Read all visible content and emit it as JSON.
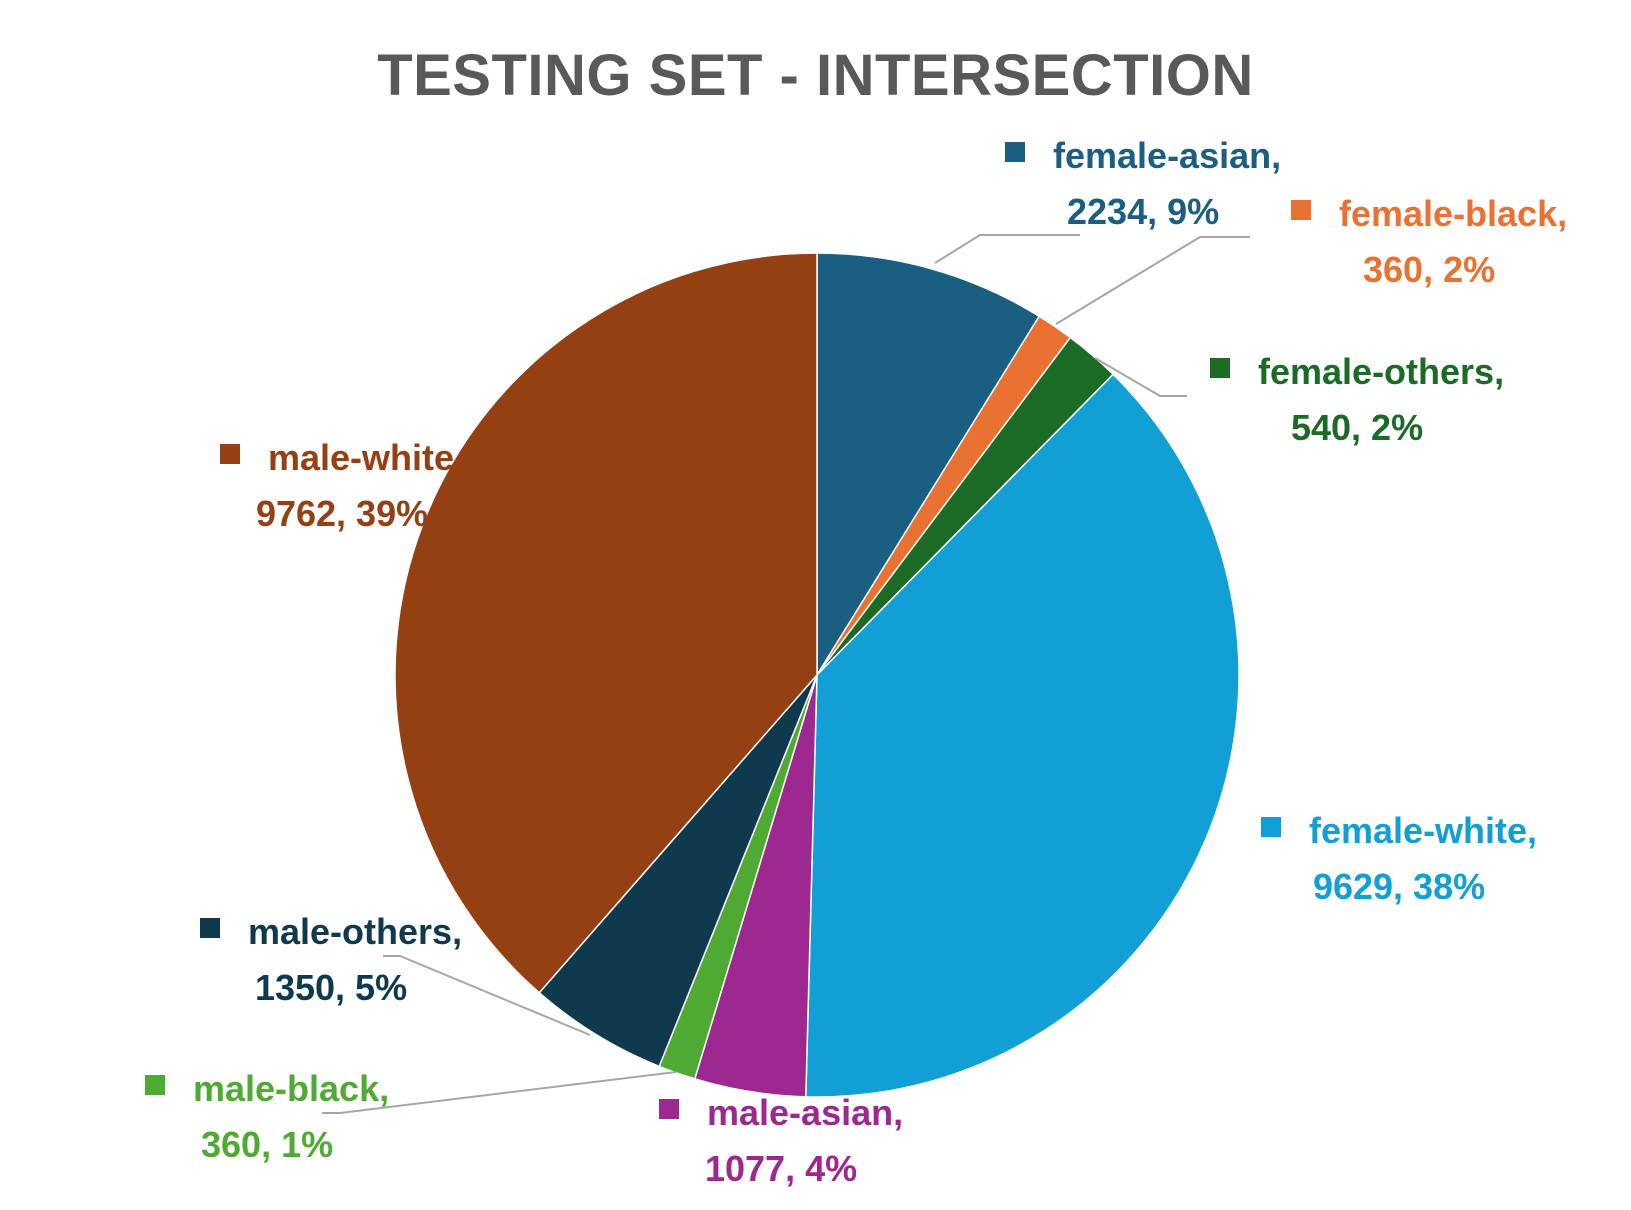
{
  "chart_data": {
    "type": "pie",
    "title": "TESTING SET - INTERSECTION",
    "slices": [
      {
        "label": "female-asian",
        "value": 2234,
        "percent_label": "9%",
        "color": "#1a5e82",
        "label_lines": [
          "female-asian,",
          "2234, 9%"
        ]
      },
      {
        "label": "female-black",
        "value": 360,
        "percent_label": "2%",
        "color": "#e97232",
        "label_lines": [
          "female-black,",
          "360, 2%"
        ]
      },
      {
        "label": "female-others",
        "value": 540,
        "percent_label": "2%",
        "color": "#1b6b26",
        "label_lines": [
          "female-others,",
          "540, 2%"
        ]
      },
      {
        "label": "female-white",
        "value": 9629,
        "percent_label": "38%",
        "color": "#119fd6",
        "label_lines": [
          "female-white,",
          "9629, 38%"
        ]
      },
      {
        "label": "male-asian",
        "value": 1077,
        "percent_label": "4%",
        "color": "#9c2890",
        "label_lines": [
          "male-asian,",
          "1077, 4%"
        ]
      },
      {
        "label": "male-black",
        "value": 360,
        "percent_label": "1%",
        "color": "#4eaa32",
        "label_lines": [
          "male-black,",
          "360, 1%"
        ]
      },
      {
        "label": "male-others",
        "value": 1350,
        "percent_label": "5%",
        "color": "#0f3a4e",
        "label_lines": [
          "male-others,",
          "1350, 5%"
        ]
      },
      {
        "label": "male-white",
        "value": 9762,
        "percent_label": "39%",
        "color": "#944013",
        "label_lines": [
          "male-white,",
          "9762, 39%"
        ]
      }
    ],
    "start_angle_deg": 0,
    "direction": "clockwise",
    "legend": "none",
    "data_labels": "outside with leader lines"
  }
}
